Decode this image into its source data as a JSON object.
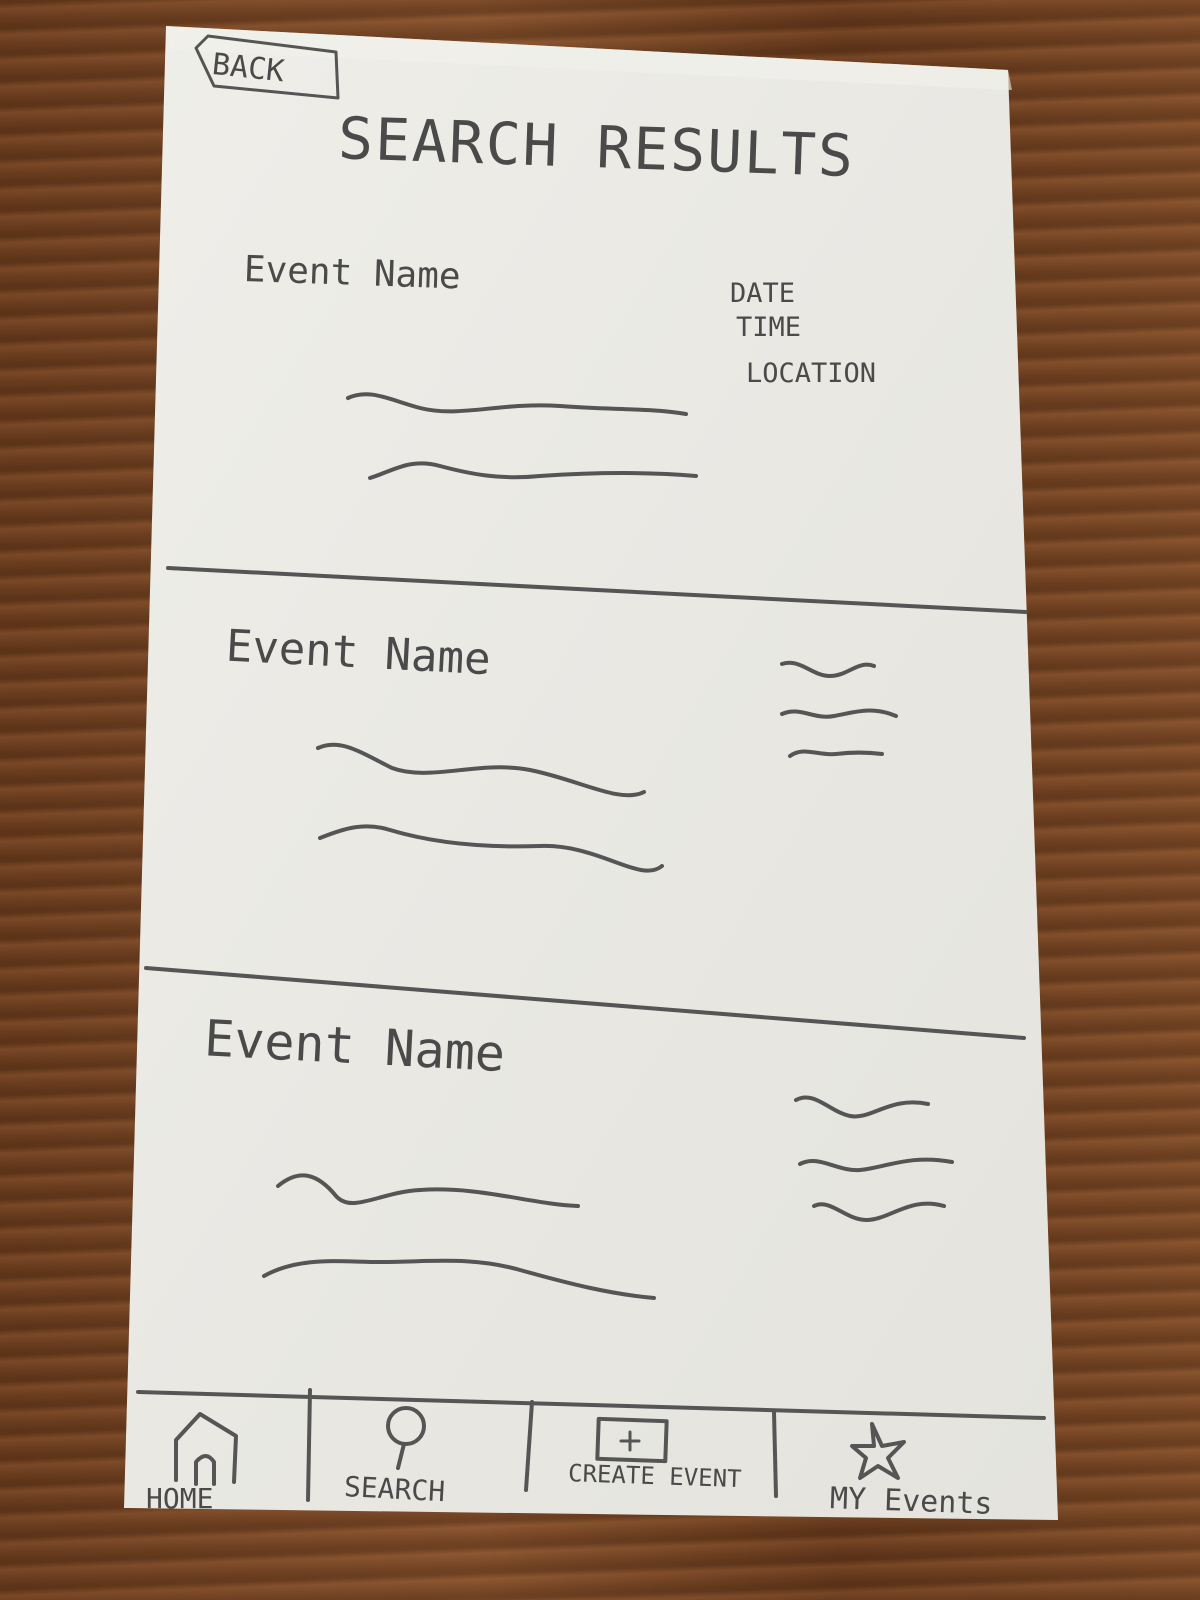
{
  "back_button": {
    "label": "BACK"
  },
  "page_title": "SEARCH RESULTS",
  "results": [
    {
      "name": "Event Name",
      "details": [
        "DATE",
        "TIME",
        "LOCATION"
      ]
    },
    {
      "name": "Event Name",
      "details": []
    },
    {
      "name": "Event Name",
      "details": []
    }
  ],
  "nav": [
    {
      "label": "HOME",
      "icon": "home-icon"
    },
    {
      "label": "SEARCH",
      "icon": "search-icon"
    },
    {
      "label": "CREATE EVENT",
      "icon": "create-event-icon"
    },
    {
      "label": "MY Events",
      "icon": "star-icon"
    }
  ],
  "colors": {
    "paper": "#ecebe6",
    "pencil": "#555555",
    "wood": "#7a4a28"
  }
}
